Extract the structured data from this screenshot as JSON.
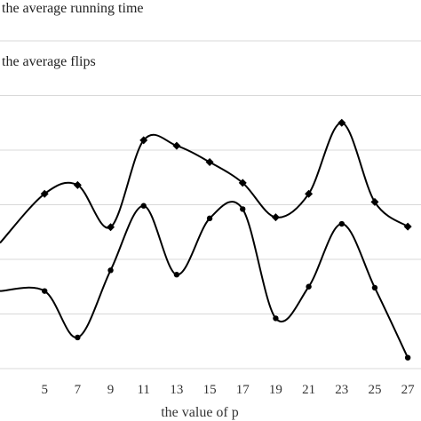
{
  "chart_data": {
    "type": "line",
    "xlabel": "the value of p",
    "ylabel": "",
    "x": [
      5,
      7,
      9,
      11,
      13,
      15,
      17,
      19,
      21,
      23,
      25,
      27
    ],
    "xlim": [
      2.3,
      27.8
    ],
    "ylim": [
      0,
      6
    ],
    "grid": true,
    "legend_position": "top-left",
    "series": [
      {
        "name": "the average running time",
        "marker": "diamond",
        "values": [
          3.2,
          3.36,
          2.59,
          4.18,
          4.08,
          3.78,
          3.4,
          2.77,
          3.2,
          4.5,
          3.05,
          2.6
        ],
        "left_edge_value": 2.3
      },
      {
        "name": "the average flips",
        "marker": "circle",
        "values": [
          1.42,
          0.57,
          1.8,
          2.98,
          1.72,
          2.75,
          2.92,
          0.92,
          1.5,
          2.65,
          1.48,
          0.2
        ],
        "left_edge_value": 1.42
      }
    ]
  }
}
